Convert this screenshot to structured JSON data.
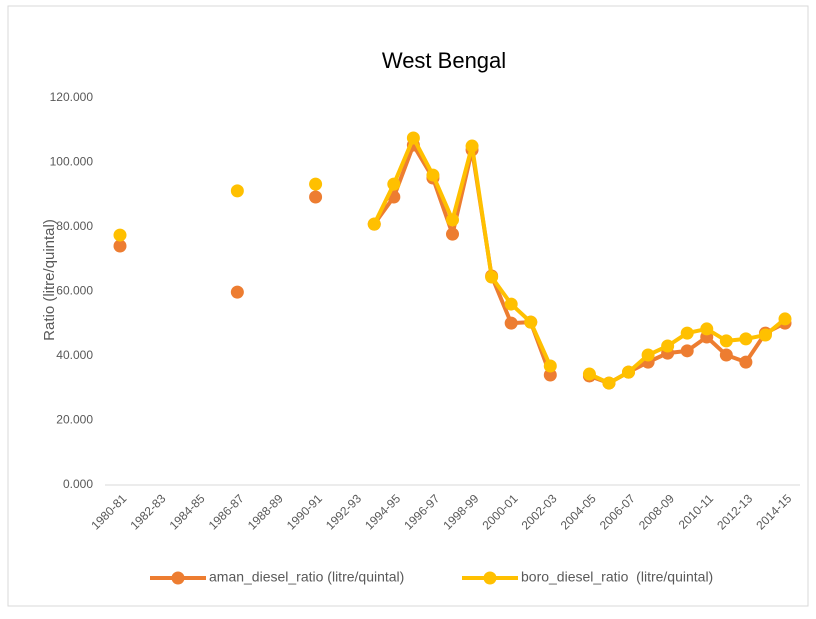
{
  "chart_data": {
    "type": "line",
    "title": "West Bengal",
    "y_label": "Ratio (litre/quintal)",
    "categories": [
      "1980-81",
      null,
      "1982-83",
      null,
      "1984-85",
      null,
      "1986-87",
      null,
      "1988-89",
      null,
      "1990-91",
      null,
      "1992-93",
      null,
      "1994-95",
      null,
      "1996-97",
      null,
      "1998-99",
      null,
      "2000-01",
      null,
      "2002-03",
      null,
      "2004-05",
      null,
      "2006-07",
      null,
      "2008-09",
      null,
      "2010-11",
      null,
      "2012-13",
      null,
      "2014-15"
    ],
    "series": [
      {
        "name": "aman_diesel_ratio (litre/quintal)",
        "color": "#ED7D31",
        "values": [
          74.1,
          null,
          null,
          null,
          null,
          null,
          59.8,
          null,
          null,
          null,
          89.3,
          null,
          null,
          80.9,
          89.3,
          105.4,
          95.2,
          77.8,
          103.9,
          64.8,
          50.2,
          50.5,
          34.1,
          null,
          33.8,
          31.6,
          35.0,
          38.1,
          40.9,
          41.6,
          45.9,
          40.3,
          38.1,
          47.1,
          50.2
        ]
      },
      {
        "name": "boro_diesel_ratio  (litre/quintal)",
        "color": "#FFC000",
        "values": [
          77.5,
          null,
          null,
          null,
          null,
          null,
          91.2,
          null,
          null,
          null,
          93.3,
          null,
          null,
          80.9,
          93.3,
          107.6,
          96.1,
          82.2,
          105.1,
          64.5,
          56.1,
          50.5,
          36.9,
          null,
          34.4,
          31.6,
          35.0,
          40.3,
          43.1,
          47.1,
          48.4,
          44.7,
          45.3,
          46.5,
          51.5
        ]
      }
    ],
    "ylim": [
      0,
      120
    ],
    "yticks": [
      {
        "value": 0,
        "label": "0.000"
      },
      {
        "value": 20,
        "label": "20.000"
      },
      {
        "value": 40,
        "label": "40.000"
      },
      {
        "value": 60,
        "label": "60.000"
      },
      {
        "value": 80,
        "label": "80.000"
      },
      {
        "value": 100,
        "label": "100.000"
      },
      {
        "value": 120,
        "label": "120.000"
      }
    ],
    "grid": false,
    "legend": "bottom"
  }
}
